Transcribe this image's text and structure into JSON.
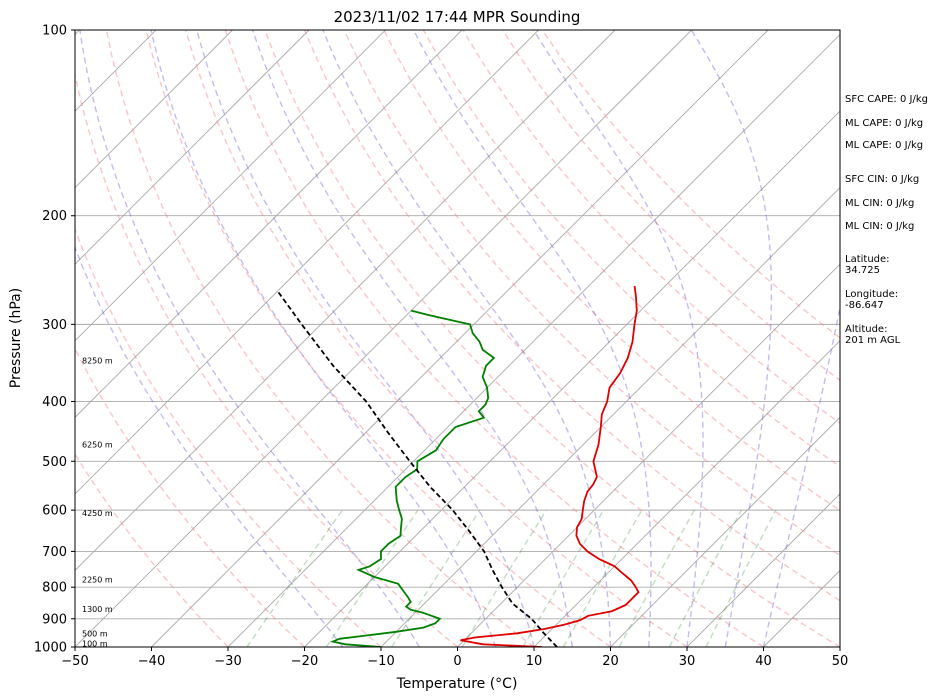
{
  "chart_data": {
    "type": "line",
    "title": "2023/11/02 17:44 MPR Sounding",
    "xlabel": "Temperature (°C)",
    "ylabel": "Pressure (hPa)",
    "xlim": [
      -50,
      50
    ],
    "ylim": [
      1000,
      100
    ],
    "y_scale": "log",
    "grid": true,
    "x_ticks": [
      "−50",
      "−40",
      "−30",
      "−20",
      "−10",
      "0",
      "10",
      "20",
      "30",
      "40",
      "50"
    ],
    "y_ticks": [
      "100",
      "200",
      "300",
      "400",
      "500",
      "600",
      "700",
      "800",
      "900",
      "1000"
    ],
    "series": [
      {
        "color": "#e00000",
        "points": [
          [
            1000,
            11
          ],
          [
            990,
            3
          ],
          [
            975,
            -0.5
          ],
          [
            965,
            1
          ],
          [
            950,
            6
          ],
          [
            935,
            9
          ],
          [
            920,
            11
          ],
          [
            905,
            12.5
          ],
          [
            890,
            13
          ],
          [
            875,
            15.5
          ],
          [
            855,
            16.5
          ],
          [
            835,
            16.5
          ],
          [
            815,
            16.5
          ],
          [
            800,
            15.5
          ],
          [
            780,
            14
          ],
          [
            760,
            12
          ],
          [
            740,
            10
          ],
          [
            720,
            7
          ],
          [
            700,
            4.5
          ],
          [
            680,
            2.5
          ],
          [
            660,
            1
          ],
          [
            640,
            0
          ],
          [
            620,
            -0.5
          ],
          [
            600,
            -1.5
          ],
          [
            580,
            -2.5
          ],
          [
            560,
            -3.3
          ],
          [
            545,
            -3.5
          ],
          [
            530,
            -4
          ],
          [
            500,
            -6.5
          ],
          [
            470,
            -8
          ],
          [
            440,
            -10
          ],
          [
            420,
            -11.5
          ],
          [
            400,
            -12.5
          ],
          [
            380,
            -14
          ],
          [
            360,
            -14.5
          ],
          [
            340,
            -15.5
          ],
          [
            320,
            -17
          ],
          [
            300,
            -19
          ],
          [
            285,
            -20.5
          ],
          [
            270,
            -22.5
          ],
          [
            260,
            -24
          ]
        ]
      },
      {
        "color": "#008000",
        "points": [
          [
            1000,
            -10
          ],
          [
            990,
            -15
          ],
          [
            980,
            -17
          ],
          [
            970,
            -16.5
          ],
          [
            960,
            -14
          ],
          [
            945,
            -10
          ],
          [
            930,
            -7
          ],
          [
            915,
            -6
          ],
          [
            900,
            -6
          ],
          [
            880,
            -9
          ],
          [
            870,
            -11
          ],
          [
            860,
            -12
          ],
          [
            845,
            -12
          ],
          [
            830,
            -13
          ],
          [
            810,
            -14.5
          ],
          [
            790,
            -16
          ],
          [
            770,
            -20
          ],
          [
            750,
            -23
          ],
          [
            740,
            -22
          ],
          [
            720,
            -21.5
          ],
          [
            700,
            -22.5
          ],
          [
            680,
            -22.5
          ],
          [
            660,
            -22
          ],
          [
            640,
            -23
          ],
          [
            620,
            -24
          ],
          [
            600,
            -25.5
          ],
          [
            580,
            -27
          ],
          [
            565,
            -28
          ],
          [
            550,
            -29
          ],
          [
            530,
            -29
          ],
          [
            515,
            -28.5
          ],
          [
            500,
            -29.5
          ],
          [
            480,
            -28.5
          ],
          [
            460,
            -29
          ],
          [
            440,
            -29
          ],
          [
            425,
            -26.5
          ],
          [
            415,
            -28
          ],
          [
            405,
            -28
          ],
          [
            395,
            -28.5
          ],
          [
            380,
            -30
          ],
          [
            365,
            -32
          ],
          [
            350,
            -33
          ],
          [
            340,
            -33
          ],
          [
            330,
            -35.5
          ],
          [
            320,
            -37
          ],
          [
            310,
            -39
          ],
          [
            300,
            -40.5
          ],
          [
            290,
            -47
          ],
          [
            285,
            -50
          ]
        ]
      },
      {
        "color": "#000000",
        "dashed": true,
        "points": [
          [
            1000,
            13
          ],
          [
            950,
            9.5
          ],
          [
            900,
            6
          ],
          [
            850,
            1.5
          ],
          [
            800,
            -2
          ],
          [
            750,
            -5.5
          ],
          [
            700,
            -9
          ],
          [
            650,
            -13.5
          ],
          [
            600,
            -18.5
          ],
          [
            550,
            -24.5
          ],
          [
            500,
            -30.5
          ],
          [
            450,
            -37
          ],
          [
            400,
            -44
          ],
          [
            350,
            -53
          ],
          [
            300,
            -62.5
          ],
          [
            265,
            -70
          ]
        ]
      }
    ],
    "isotherms": [
      -160,
      -150,
      -140,
      -130,
      -120,
      -110,
      -100,
      -90,
      -80,
      -70,
      -60,
      -50,
      -40,
      -30,
      -20,
      -10,
      0,
      10,
      20,
      30,
      40,
      50
    ],
    "dry_adiabats_theta_c": [
      -30,
      -20,
      -10,
      0,
      10,
      20,
      30,
      40,
      50,
      60,
      70,
      80,
      90,
      100,
      110,
      120
    ],
    "moist_adiabats_start_c": [
      -15,
      -5,
      5,
      10,
      15,
      20,
      25,
      30,
      35,
      40
    ],
    "mixing_ratio_lines_gkg": [
      0.4,
      1,
      2,
      4,
      7,
      10,
      16,
      24,
      32
    ],
    "height_labels": [
      {
        "label": "100 m",
        "pressure": 987
      },
      {
        "label": "500 m",
        "pressure": 950
      },
      {
        "label": "1300 m",
        "pressure": 868
      },
      {
        "label": "2250 m",
        "pressure": 778
      },
      {
        "label": "4250 m",
        "pressure": 607
      },
      {
        "label": "6250 m",
        "pressure": 470
      },
      {
        "label": "8250 m",
        "pressure": 343
      }
    ]
  },
  "stats": [
    {
      "label": "SFC CAPE: 0 J/kg"
    },
    {
      "label": "ML CAPE: 0 J/kg"
    },
    {
      "label": "ML CAPE: 0 J/kg"
    },
    {
      "label": "SFC CIN: 0 J/kg"
    },
    {
      "label": "ML CIN: 0 J/kg"
    },
    {
      "label": "ML CIN: 0 J/kg"
    },
    {
      "label": "Latitude:",
      "value": "34.725"
    },
    {
      "label": "Longitude:",
      "value": "-86.647"
    },
    {
      "label": "Altitude:",
      "value": "201 m AGL"
    }
  ]
}
